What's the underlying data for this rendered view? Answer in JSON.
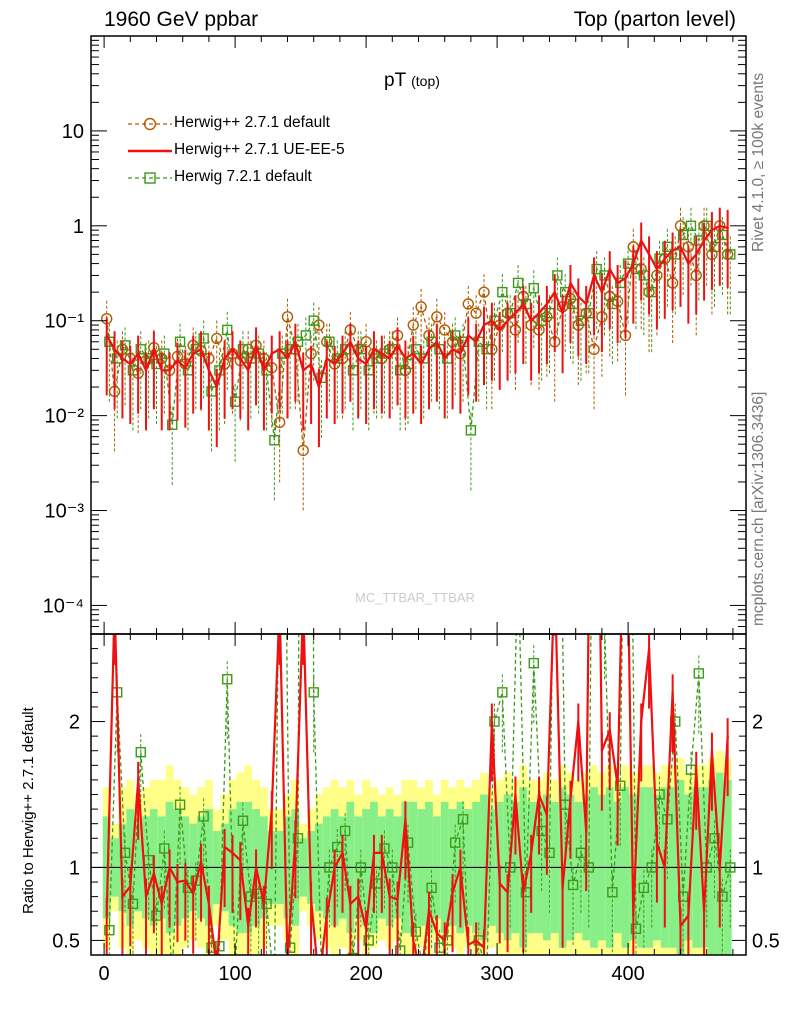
{
  "header": {
    "left": "1960 GeV ppbar",
    "right": "Top (parton level)"
  },
  "side_labels": {
    "rivet": "Rivet 4.1.0, ≥ 100k events",
    "mcplots": "mcplots.cern.ch [arXiv:1306.3436]"
  },
  "watermark": "MC_TTBAR_TTBAR",
  "chart_data": {
    "type": "line",
    "title": "pT",
    "title_sub": "(top)",
    "xlim": [
      -10,
      490
    ],
    "x_ticks": [
      0,
      100,
      200,
      300,
      400
    ],
    "top_panel": {
      "yscale": "log",
      "ylim": [
        5e-05,
        100
      ],
      "y_ticks": [
        {
          "value": 10,
          "label": "10"
        },
        {
          "value": 1,
          "label": "1"
        },
        {
          "value": 0.1,
          "label": "10⁻¹"
        },
        {
          "value": 0.01,
          "label": "10⁻²"
        },
        {
          "value": 0.001,
          "label": "10⁻³"
        },
        {
          "value": 0.0001,
          "label": "10⁻⁴"
        }
      ]
    },
    "ratio_panel": {
      "ylabel": "Ratio to Herwig++ 2.7.1 default",
      "ylim": [
        0.4,
        2.6
      ],
      "y_ticks": [
        {
          "value": 0.5,
          "label": "0.5"
        },
        {
          "value": 1,
          "label": "1"
        },
        {
          "value": 2,
          "label": "2"
        }
      ]
    },
    "legend": [
      {
        "label": "Herwig++ 2.7.1 default",
        "color": "#b35a00",
        "marker": "circle",
        "style": "dashed"
      },
      {
        "label": "Herwig++ 2.7.1 UE-EE-5",
        "color": "#ee1111",
        "marker": "none",
        "style": "solid"
      },
      {
        "label": "Herwig 7.2.1 default",
        "color": "#3c9a1a",
        "marker": "square",
        "style": "dashed"
      }
    ],
    "series": [
      {
        "name": "Herwig++ 2.7.1 default",
        "x": [
          2,
          8,
          14,
          20,
          26,
          32,
          38,
          44,
          50,
          56,
          62,
          68,
          74,
          80,
          86,
          92,
          98,
          104,
          110,
          116,
          122,
          128,
          134,
          140,
          146,
          152,
          158,
          164,
          170,
          176,
          182,
          188,
          194,
          200,
          206,
          212,
          218,
          224,
          230,
          236,
          242,
          248,
          254,
          260,
          266,
          272,
          278,
          284,
          290,
          296,
          302,
          308,
          314,
          320,
          326,
          332,
          338,
          344,
          350,
          356,
          362,
          368,
          374,
          380,
          386,
          392,
          398,
          404,
          410,
          416,
          422,
          428,
          434,
          440,
          446,
          452,
          458,
          464,
          470,
          476
        ],
        "y": [
          0.105,
          0.018,
          0.05,
          0.04,
          0.028,
          0.038,
          0.052,
          0.04,
          0.03,
          0.042,
          0.035,
          0.055,
          0.048,
          0.04,
          0.065,
          0.035,
          0.045,
          0.038,
          0.05,
          0.055,
          0.04,
          0.032,
          0.0085,
          0.11,
          0.05,
          0.0043,
          0.045,
          0.09,
          0.06,
          0.035,
          0.04,
          0.08,
          0.05,
          0.06,
          0.045,
          0.04,
          0.05,
          0.07,
          0.03,
          0.09,
          0.14,
          0.07,
          0.11,
          0.08,
          0.06,
          0.045,
          0.15,
          0.12,
          0.2,
          0.05,
          0.09,
          0.12,
          0.08,
          0.18,
          0.09,
          0.08,
          0.11,
          0.06,
          0.14,
          0.17,
          0.09,
          0.12,
          0.05,
          0.11,
          0.18,
          0.16,
          0.07,
          0.6,
          0.35,
          0.2,
          0.3,
          0.45,
          0.25,
          1.0,
          0.6,
          0.3,
          1.0,
          0.5,
          1.0,
          0.5
        ]
      },
      {
        "name": "Herwig++ 2.7.1 UE-EE-5",
        "x": [
          2,
          8,
          14,
          20,
          26,
          32,
          38,
          44,
          50,
          56,
          62,
          68,
          74,
          80,
          86,
          92,
          98,
          104,
          110,
          116,
          122,
          128,
          134,
          140,
          146,
          152,
          158,
          164,
          170,
          176,
          182,
          188,
          194,
          200,
          206,
          212,
          218,
          224,
          230,
          236,
          242,
          248,
          254,
          260,
          266,
          272,
          278,
          284,
          290,
          296,
          302,
          308,
          314,
          320,
          326,
          332,
          338,
          344,
          350,
          356,
          362,
          368,
          374,
          380,
          386,
          392,
          398,
          404,
          410,
          416,
          422,
          428,
          434,
          440,
          446,
          452,
          458,
          464,
          470,
          476
        ],
        "y": [
          0.07,
          0.05,
          0.04,
          0.035,
          0.045,
          0.03,
          0.05,
          0.03,
          0.03,
          0.038,
          0.032,
          0.045,
          0.05,
          0.03,
          0.02,
          0.04,
          0.05,
          0.04,
          0.03,
          0.055,
          0.03,
          0.045,
          0.05,
          0.04,
          0.06,
          0.03,
          0.035,
          0.02,
          0.04,
          0.035,
          0.045,
          0.06,
          0.04,
          0.035,
          0.05,
          0.045,
          0.04,
          0.055,
          0.04,
          0.045,
          0.035,
          0.05,
          0.06,
          0.04,
          0.05,
          0.045,
          0.07,
          0.06,
          0.09,
          0.1,
          0.08,
          0.1,
          0.12,
          0.15,
          0.1,
          0.12,
          0.15,
          0.2,
          0.12,
          0.25,
          0.18,
          0.15,
          0.3,
          0.2,
          0.35,
          0.25,
          0.28,
          0.4,
          0.7,
          0.5,
          0.35,
          0.45,
          0.55,
          0.6,
          0.4,
          0.5,
          0.7,
          0.9,
          1.0,
          0.95
        ]
      },
      {
        "name": "Herwig 7.2.1 default",
        "x": [
          4,
          10,
          16,
          22,
          28,
          34,
          40,
          46,
          52,
          58,
          64,
          70,
          76,
          82,
          88,
          94,
          100,
          106,
          112,
          118,
          124,
          130,
          136,
          142,
          148,
          154,
          160,
          166,
          172,
          178,
          184,
          190,
          196,
          202,
          208,
          214,
          220,
          226,
          232,
          238,
          244,
          250,
          256,
          262,
          268,
          274,
          280,
          286,
          292,
          298,
          304,
          310,
          316,
          322,
          328,
          334,
          340,
          346,
          352,
          358,
          364,
          370,
          376,
          382,
          388,
          394,
          400,
          406,
          412,
          418,
          424,
          430,
          436,
          442,
          448,
          454,
          460,
          466,
          472,
          478
        ],
        "y": [
          0.06,
          0.04,
          0.055,
          0.03,
          0.05,
          0.04,
          0.035,
          0.045,
          0.008,
          0.06,
          0.03,
          0.05,
          0.065,
          0.018,
          0.03,
          0.08,
          0.014,
          0.05,
          0.04,
          0.045,
          0.03,
          0.0055,
          0.045,
          0.05,
          0.06,
          0.07,
          0.1,
          0.025,
          0.06,
          0.04,
          0.05,
          0.03,
          0.05,
          0.03,
          0.04,
          0.045,
          0.05,
          0.03,
          0.035,
          0.05,
          0.04,
          0.06,
          0.05,
          0.04,
          0.07,
          0.06,
          0.007,
          0.06,
          0.05,
          0.1,
          0.2,
          0.12,
          0.25,
          0.15,
          0.22,
          0.1,
          0.12,
          0.3,
          0.2,
          0.15,
          0.1,
          0.12,
          0.35,
          0.3,
          0.15,
          0.25,
          0.4,
          0.35,
          0.3,
          0.2,
          0.45,
          0.6,
          0.5,
          0.8,
          1.0,
          0.7,
          1.0,
          0.6,
          0.8,
          0.5
        ]
      }
    ],
    "ratio_series": [
      {
        "name": "Herwig++ 2.7.1 UE-EE-5",
        "x": [
          2,
          8,
          14,
          20,
          26,
          32,
          38,
          44,
          50,
          56,
          62,
          68,
          74,
          80,
          86,
          92,
          98,
          104,
          110,
          116,
          122,
          128,
          134,
          140,
          146,
          152,
          158,
          164,
          170,
          176,
          182,
          188,
          194,
          200,
          206,
          212,
          218,
          224,
          230,
          236,
          242,
          248,
          254,
          260,
          266,
          272,
          278,
          284,
          290,
          296,
          302,
          308,
          314,
          320,
          326,
          332,
          338,
          344,
          350,
          356,
          362,
          368,
          374,
          380,
          386,
          392,
          398,
          404,
          410,
          416,
          422,
          428,
          434,
          440,
          446,
          452,
          458,
          464,
          470,
          476
        ],
        "y": [
          0.67,
          2.8,
          0.8,
          0.87,
          1.6,
          0.8,
          0.96,
          0.75,
          1.0,
          0.9,
          0.91,
          0.82,
          1.04,
          0.75,
          0.31,
          1.14,
          1.1,
          1.05,
          0.6,
          1.0,
          0.75,
          1.4,
          2.8,
          0.36,
          1.2,
          2.8,
          0.78,
          0.22,
          0.67,
          1.0,
          1.1,
          0.75,
          0.8,
          0.58,
          1.1,
          1.1,
          0.8,
          0.78,
          1.33,
          0.5,
          0.25,
          0.71,
          0.55,
          0.5,
          0.83,
          1.0,
          0.47,
          0.5,
          0.45,
          2.0,
          0.89,
          0.83,
          1.5,
          0.83,
          1.1,
          1.5,
          1.36,
          3.0,
          0.86,
          1.47,
          2.0,
          1.25,
          6.0,
          1.8,
          1.94,
          1.56,
          4.0,
          0.67,
          2.0,
          2.5,
          1.17,
          1.0,
          2.2,
          0.6,
          0.67,
          1.67,
          0.7,
          1.8,
          1.0,
          1.9
        ]
      },
      {
        "name": "Herwig 7.2.1 default",
        "x": [
          4,
          10,
          16,
          22,
          28,
          34,
          40,
          46,
          52,
          58,
          64,
          70,
          76,
          82,
          88,
          94,
          100,
          106,
          112,
          118,
          124,
          130,
          136,
          142,
          148,
          154,
          160,
          166,
          172,
          178,
          184,
          190,
          196,
          202,
          208,
          214,
          220,
          226,
          232,
          238,
          244,
          250,
          256,
          262,
          268,
          274,
          280,
          286,
          292,
          298,
          304,
          310,
          316,
          322,
          328,
          334,
          340,
          346,
          352,
          358,
          364,
          370,
          376,
          382,
          388,
          394,
          400,
          406,
          412,
          418,
          424,
          430,
          436,
          442,
          448,
          454,
          460,
          466,
          472,
          478
        ],
        "y": [
          0.57,
          2.2,
          1.1,
          0.75,
          1.79,
          1.05,
          0.67,
          1.13,
          0.27,
          1.43,
          0.86,
          0.91,
          1.35,
          0.45,
          0.46,
          2.29,
          0.31,
          1.32,
          0.8,
          0.82,
          0.75,
          0.17,
          5.3,
          0.45,
          1.2,
          16.0,
          2.2,
          0.28,
          1.0,
          1.14,
          1.25,
          0.38,
          1.0,
          0.5,
          0.89,
          1.13,
          1.0,
          0.43,
          1.17,
          0.56,
          0.29,
          0.86,
          0.45,
          0.5,
          1.17,
          1.33,
          0.05,
          0.5,
          0.25,
          2.0,
          2.2,
          1.0,
          3.1,
          0.83,
          2.4,
          1.25,
          1.1,
          5.0,
          1.43,
          0.88,
          1.1,
          1.0,
          7.0,
          2.7,
          0.83,
          1.56,
          5.7,
          0.58,
          0.86,
          1.0,
          1.5,
          1.33,
          2.0,
          0.8,
          1.67,
          2.33,
          1.0,
          1.2,
          0.8,
          1.0
        ]
      }
    ],
    "ratio_bands": {
      "outer_color": "#ffff88",
      "inner_color": "#88ee88",
      "x": [
        2,
        8,
        14,
        20,
        26,
        32,
        38,
        44,
        50,
        56,
        62,
        68,
        74,
        80,
        86,
        92,
        98,
        104,
        110,
        116,
        122,
        128,
        134,
        140,
        146,
        152,
        158,
        164,
        170,
        176,
        182,
        188,
        194,
        200,
        206,
        212,
        218,
        224,
        230,
        236,
        242,
        248,
        254,
        260,
        266,
        272,
        278,
        284,
        290,
        296,
        302,
        308,
        314,
        320,
        326,
        332,
        338,
        344,
        350,
        356,
        362,
        368,
        374,
        380,
        386,
        392,
        398,
        404,
        410,
        416,
        422,
        428,
        434,
        440,
        446,
        452,
        458,
        464,
        470,
        476
      ],
      "outer": [
        0.55,
        0.3,
        0.55,
        0.6,
        0.5,
        0.55,
        0.6,
        0.6,
        0.7,
        0.6,
        0.55,
        0.5,
        0.55,
        0.6,
        0.4,
        0.5,
        0.6,
        0.65,
        0.7,
        0.6,
        0.55,
        0.4,
        0.4,
        0.5,
        0.6,
        0.3,
        0.4,
        0.5,
        0.55,
        0.6,
        0.55,
        0.6,
        0.5,
        0.6,
        0.55,
        0.5,
        0.55,
        0.5,
        0.6,
        0.6,
        0.55,
        0.6,
        0.5,
        0.6,
        0.55,
        0.6,
        0.55,
        0.6,
        0.65,
        0.55,
        0.6,
        0.65,
        0.6,
        0.7,
        0.6,
        0.6,
        0.65,
        0.6,
        0.7,
        0.65,
        0.6,
        0.65,
        0.7,
        0.65,
        0.7,
        0.6,
        0.7,
        0.65,
        0.7,
        0.7,
        0.65,
        0.7,
        0.7,
        0.75,
        0.65,
        0.7,
        0.7,
        0.75,
        0.8,
        0.75
      ],
      "inner": [
        0.35,
        0.2,
        0.3,
        0.4,
        0.3,
        0.35,
        0.4,
        0.35,
        0.45,
        0.4,
        0.35,
        0.3,
        0.35,
        0.4,
        0.25,
        0.3,
        0.4,
        0.45,
        0.45,
        0.4,
        0.35,
        0.25,
        0.25,
        0.35,
        0.4,
        0.2,
        0.25,
        0.3,
        0.35,
        0.4,
        0.35,
        0.45,
        0.35,
        0.4,
        0.45,
        0.35,
        0.4,
        0.35,
        0.45,
        0.45,
        0.4,
        0.45,
        0.35,
        0.45,
        0.4,
        0.45,
        0.4,
        0.45,
        0.5,
        0.4,
        0.45,
        0.5,
        0.45,
        0.55,
        0.45,
        0.45,
        0.5,
        0.45,
        0.55,
        0.5,
        0.45,
        0.5,
        0.55,
        0.5,
        0.55,
        0.45,
        0.55,
        0.5,
        0.55,
        0.55,
        0.5,
        0.55,
        0.55,
        0.6,
        0.5,
        0.55,
        0.55,
        0.6,
        0.65,
        0.6
      ]
    }
  }
}
